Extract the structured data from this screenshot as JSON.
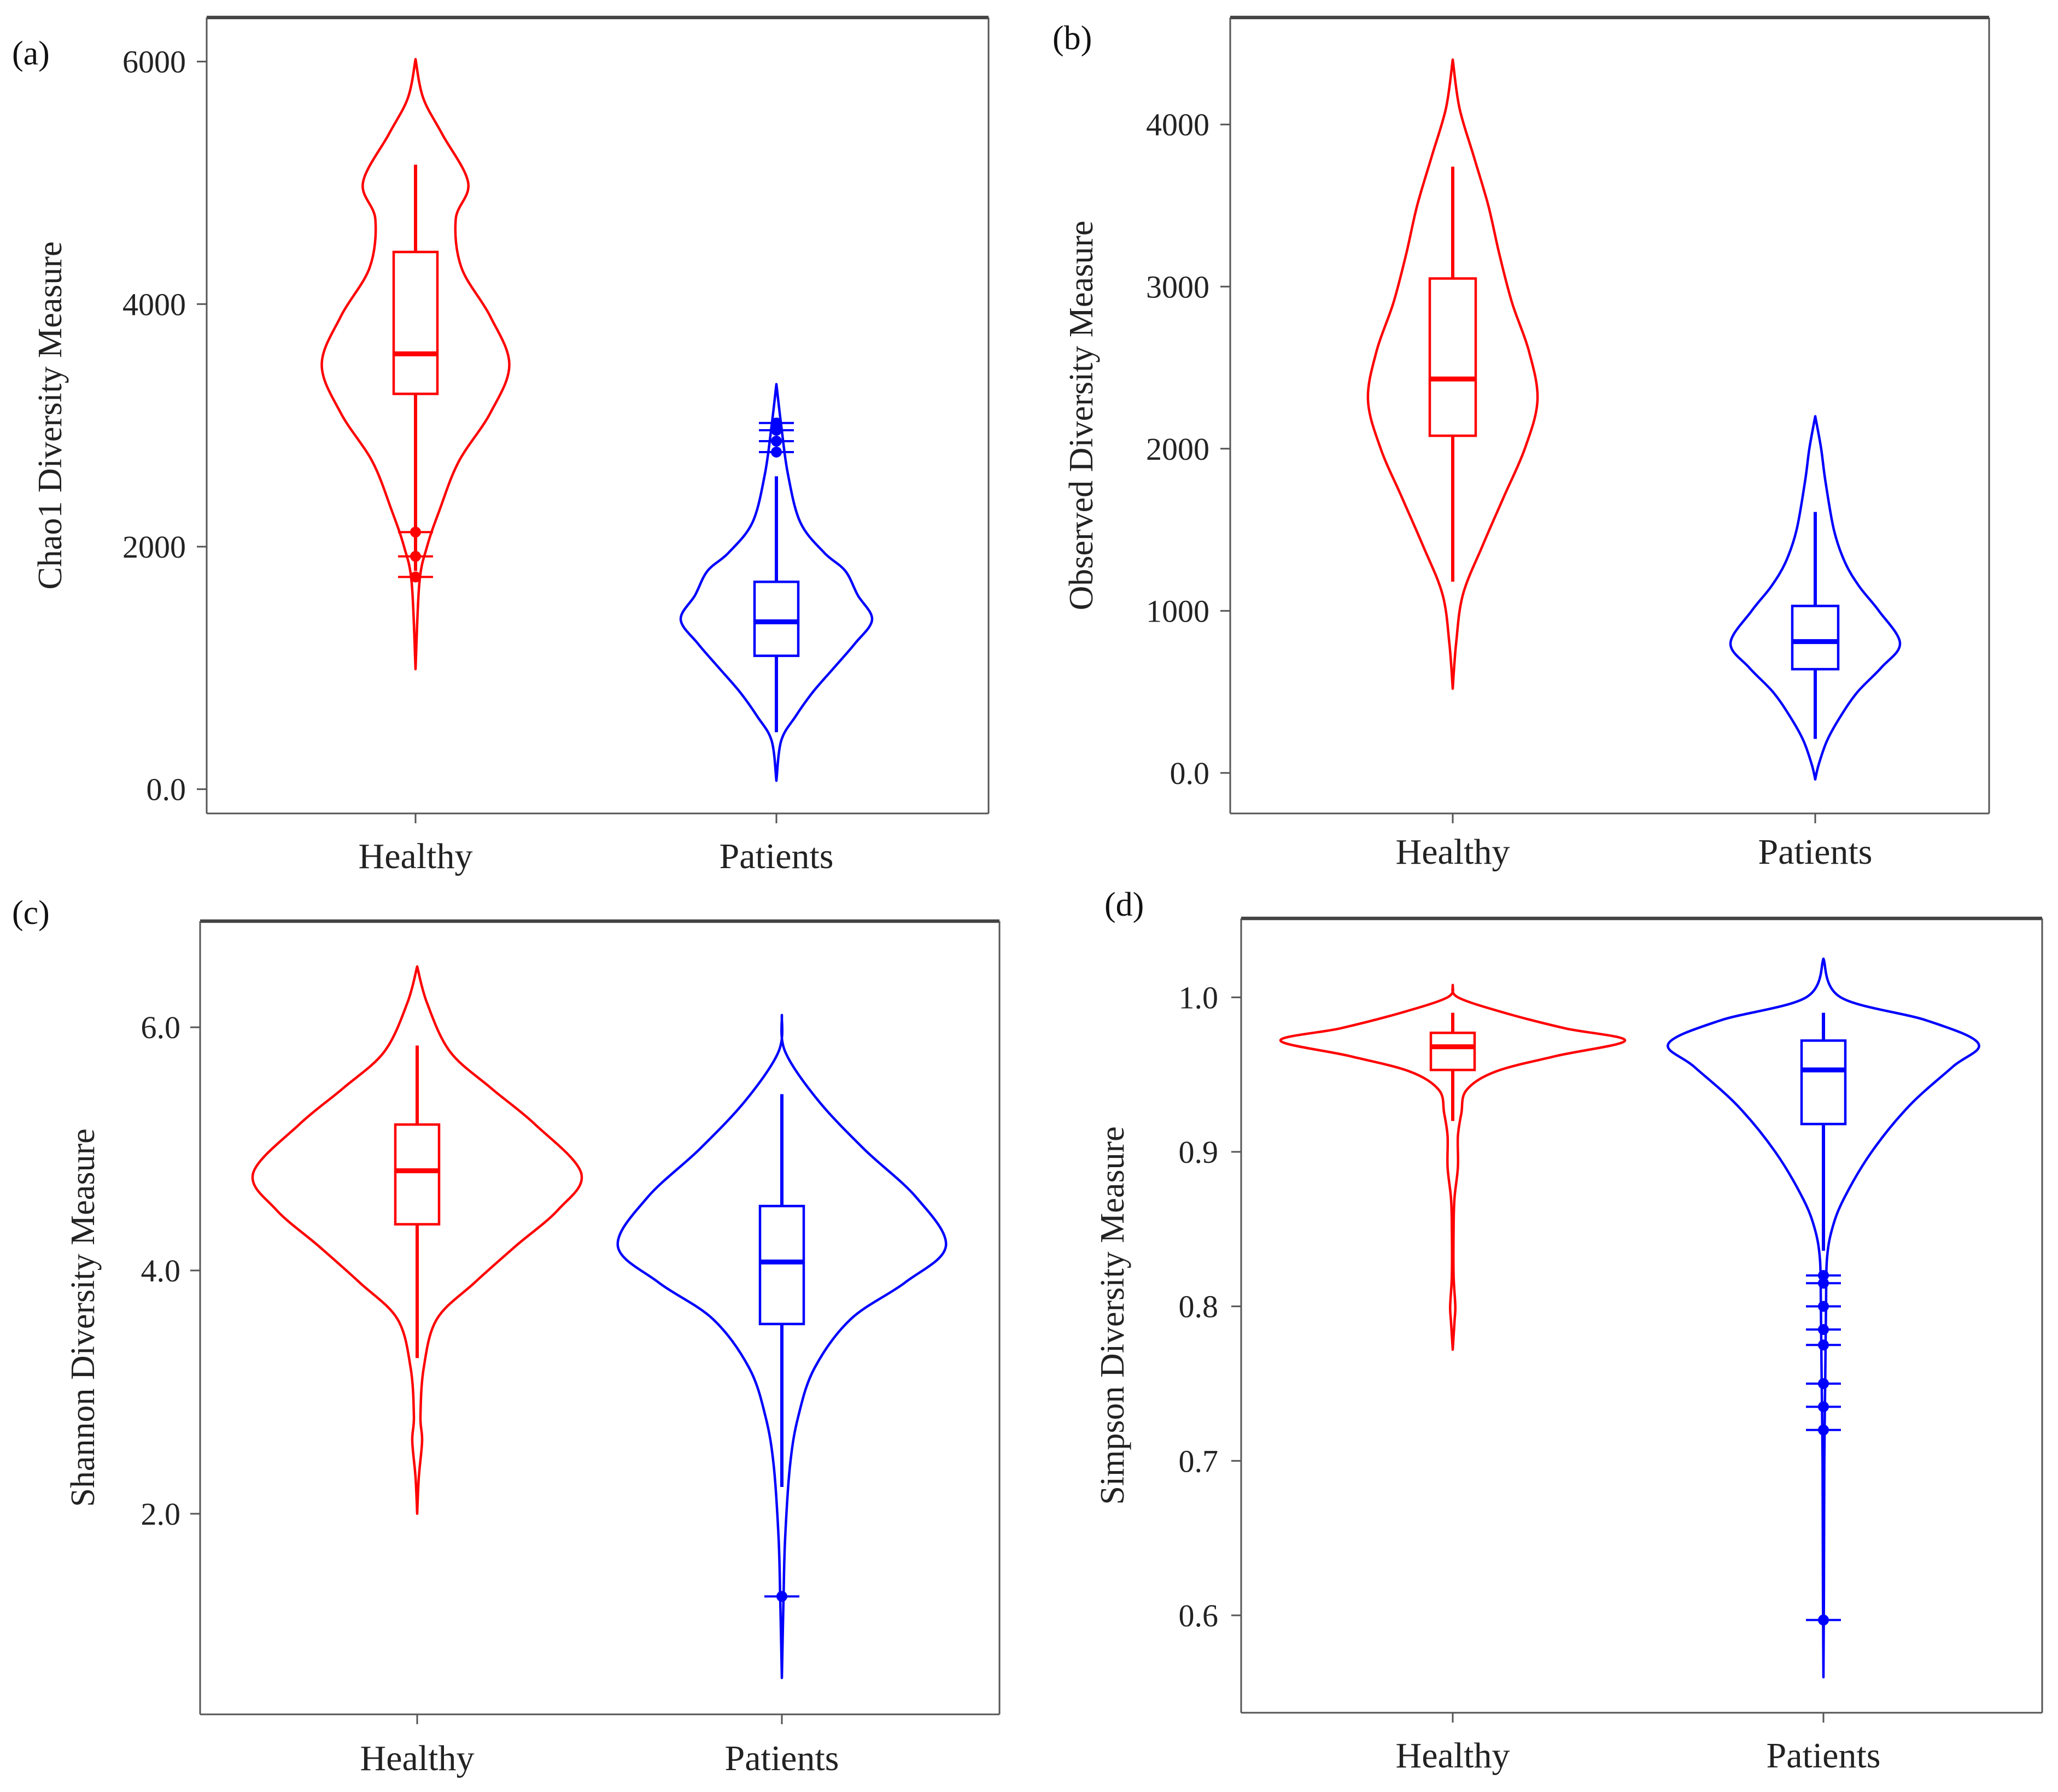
{
  "colors": {
    "healthy": "#ff0000",
    "patients": "#0000ff",
    "axis": "#555555",
    "top_strip": "#444444"
  },
  "chart_data": [
    {
      "panel": "(a)",
      "type": "violin",
      "ylabel": "Chao1 Diversity Measure",
      "categories": [
        "Healthy",
        "Patients"
      ],
      "y_ticks": [
        0,
        2000,
        4000,
        6000
      ],
      "y_tick_labels": [
        "0.0",
        "2000",
        "4000",
        "6000"
      ],
      "ylim": [
        -200,
        6350
      ],
      "series": [
        {
          "name": "Healthy",
          "color_key": "healthy",
          "density": [
            [
              6020,
              0
            ],
            [
              5700,
              0.08
            ],
            [
              5400,
              0.28
            ],
            [
              5000,
              0.55
            ],
            [
              4700,
              0.42
            ],
            [
              4300,
              0.48
            ],
            [
              3900,
              0.78
            ],
            [
              3500,
              0.98
            ],
            [
              3100,
              0.78
            ],
            [
              2700,
              0.45
            ],
            [
              2300,
              0.25
            ],
            [
              2000,
              0.12
            ],
            [
              1700,
              0.04
            ],
            [
              990,
              0
            ]
          ],
          "box": {
            "q1": 3260,
            "median": 3590,
            "q3": 4430,
            "whisker_low": 1800,
            "whisker_high": 5150
          },
          "outliers": [
            1750,
            1920,
            2120
          ]
        },
        {
          "name": "Patients",
          "color_key": "patients",
          "density": [
            [
              3340,
              0
            ],
            [
              3000,
              0.05
            ],
            [
              2600,
              0.12
            ],
            [
              2200,
              0.25
            ],
            [
              1950,
              0.5
            ],
            [
              1800,
              0.72
            ],
            [
              1600,
              0.85
            ],
            [
              1400,
              1.0
            ],
            [
              1200,
              0.82
            ],
            [
              1000,
              0.6
            ],
            [
              800,
              0.38
            ],
            [
              600,
              0.2
            ],
            [
              400,
              0.05
            ],
            [
              70,
              0
            ]
          ],
          "box": {
            "q1": 1100,
            "median": 1380,
            "q3": 1710,
            "whisker_low": 470,
            "whisker_high": 2580
          },
          "outliers": [
            2780,
            2870,
            2960,
            3020
          ]
        }
      ]
    },
    {
      "panel": "(b)",
      "type": "violin",
      "ylabel": "Observed Diversity Measure",
      "categories": [
        "Healthy",
        "Patients"
      ],
      "y_ticks": [
        0,
        1000,
        2000,
        3000,
        4000
      ],
      "y_tick_labels": [
        "0.0",
        "1000",
        "2000",
        "3000",
        "4000"
      ],
      "ylim": [
        -250,
        4650
      ],
      "series": [
        {
          "name": "Healthy",
          "color_key": "healthy",
          "density": [
            [
              4400,
              0
            ],
            [
              4100,
              0.08
            ],
            [
              3800,
              0.25
            ],
            [
              3500,
              0.42
            ],
            [
              3200,
              0.55
            ],
            [
              2900,
              0.7
            ],
            [
              2600,
              0.9
            ],
            [
              2300,
              1.0
            ],
            [
              2000,
              0.85
            ],
            [
              1700,
              0.6
            ],
            [
              1400,
              0.35
            ],
            [
              1100,
              0.12
            ],
            [
              800,
              0.04
            ],
            [
              520,
              0
            ]
          ],
          "box": {
            "q1": 2080,
            "median": 2430,
            "q3": 3050,
            "whisker_low": 1180,
            "whisker_high": 3740
          },
          "outliers": []
        },
        {
          "name": "Patients",
          "color_key": "patients",
          "density": [
            [
              2200,
              0
            ],
            [
              2000,
              0.07
            ],
            [
              1800,
              0.12
            ],
            [
              1500,
              0.22
            ],
            [
              1300,
              0.35
            ],
            [
              1150,
              0.52
            ],
            [
              1000,
              0.75
            ],
            [
              800,
              1.0
            ],
            [
              650,
              0.78
            ],
            [
              500,
              0.5
            ],
            [
              350,
              0.3
            ],
            [
              200,
              0.14
            ],
            [
              50,
              0.04
            ],
            [
              -40,
              0
            ]
          ],
          "box": {
            "q1": 640,
            "median": 810,
            "q3": 1030,
            "whisker_low": 210,
            "whisker_high": 1610
          },
          "outliers": []
        }
      ]
    },
    {
      "panel": "(c)",
      "type": "violin",
      "ylabel": "Shannon Diversity Measure",
      "categories": [
        "Healthy",
        "Patients"
      ],
      "y_ticks": [
        2.0,
        4.0,
        6.0
      ],
      "y_tick_labels": [
        "2.0",
        "4.0",
        "6.0"
      ],
      "ylim": [
        0.35,
        6.85
      ],
      "series": [
        {
          "name": "Healthy",
          "color_key": "healthy",
          "density": [
            [
              6.5,
              0
            ],
            [
              6.2,
              0.06
            ],
            [
              5.8,
              0.2
            ],
            [
              5.5,
              0.45
            ],
            [
              5.2,
              0.72
            ],
            [
              4.8,
              1.0
            ],
            [
              4.5,
              0.86
            ],
            [
              4.2,
              0.6
            ],
            [
              3.9,
              0.35
            ],
            [
              3.6,
              0.12
            ],
            [
              3.2,
              0.04
            ],
            [
              2.8,
              0.02
            ],
            [
              2.6,
              0.03
            ],
            [
              2.3,
              0.01
            ],
            [
              2.0,
              0
            ]
          ],
          "box": {
            "q1": 4.38,
            "median": 4.82,
            "q3": 5.2,
            "whisker_low": 3.28,
            "whisker_high": 5.85
          },
          "outliers": []
        },
        {
          "name": "Patients",
          "color_key": "patients",
          "density": [
            [
              6.1,
              0
            ],
            [
              5.8,
              0.02
            ],
            [
              5.4,
              0.22
            ],
            [
              5.0,
              0.5
            ],
            [
              4.6,
              0.82
            ],
            [
              4.2,
              1.0
            ],
            [
              3.9,
              0.75
            ],
            [
              3.6,
              0.42
            ],
            [
              3.2,
              0.2
            ],
            [
              2.8,
              0.1
            ],
            [
              2.4,
              0.05
            ],
            [
              1.8,
              0.02
            ],
            [
              1.3,
              0.01
            ],
            [
              0.65,
              0
            ]
          ],
          "box": {
            "q1": 3.56,
            "median": 4.07,
            "q3": 4.53,
            "whisker_low": 2.22,
            "whisker_high": 5.45
          },
          "outliers": [
            1.32
          ]
        }
      ]
    },
    {
      "panel": "(d)",
      "type": "violin",
      "ylabel": "Simpson Diversity Measure",
      "categories": [
        "Healthy",
        "Patients"
      ],
      "y_ticks": [
        0.6,
        0.7,
        0.8,
        0.9,
        1.0
      ],
      "y_tick_labels": [
        "0.6",
        "0.7",
        "0.8",
        "0.9",
        "1.0"
      ],
      "ylim": [
        0.537,
        1.05
      ],
      "series": [
        {
          "name": "Healthy",
          "color_key": "healthy",
          "density": [
            [
              1.008,
              0
            ],
            [
              1.0,
              0.03
            ],
            [
              0.99,
              0.3
            ],
            [
              0.98,
              0.65
            ],
            [
              0.972,
              1.0
            ],
            [
              0.962,
              0.6
            ],
            [
              0.952,
              0.25
            ],
            [
              0.94,
              0.08
            ],
            [
              0.925,
              0.05
            ],
            [
              0.91,
              0.03
            ],
            [
              0.89,
              0.03
            ],
            [
              0.87,
              0.01
            ],
            [
              0.85,
              0.005
            ],
            [
              0.82,
              0.005
            ],
            [
              0.8,
              0.015
            ],
            [
              0.79,
              0.01
            ],
            [
              0.772,
              0
            ]
          ],
          "box": {
            "q1": 0.953,
            "median": 0.968,
            "q3": 0.977,
            "whisker_low": 0.92,
            "whisker_high": 0.99
          },
          "outliers": []
        },
        {
          "name": "Patients",
          "color_key": "patients",
          "density": [
            [
              1.025,
              0
            ],
            [
              1.0,
              0.1
            ],
            [
              0.985,
              0.6
            ],
            [
              0.97,
              0.9
            ],
            [
              0.955,
              0.75
            ],
            [
              0.93,
              0.5
            ],
            [
              0.9,
              0.28
            ],
            [
              0.87,
              0.12
            ],
            [
              0.85,
              0.05
            ],
            [
              0.83,
              0.02
            ],
            [
              0.8,
              0.015
            ],
            [
              0.75,
              0.01
            ],
            [
              0.7,
              0.005
            ],
            [
              0.62,
              0.003
            ],
            [
              0.56,
              0
            ]
          ],
          "box": {
            "q1": 0.918,
            "median": 0.953,
            "q3": 0.972,
            "whisker_low": 0.836,
            "whisker_high": 0.99
          },
          "outliers": [
            0.597,
            0.72,
            0.735,
            0.75,
            0.775,
            0.785,
            0.8,
            0.815,
            0.82
          ]
        }
      ]
    }
  ]
}
